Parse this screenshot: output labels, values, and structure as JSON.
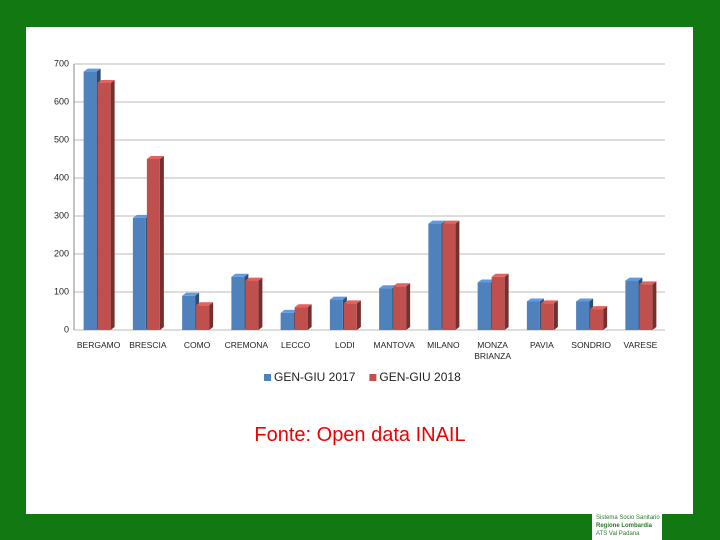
{
  "chart_data": {
    "type": "bar3d",
    "categories": [
      "BERGAMO",
      "BRESCIA",
      "COMO",
      "CREMONA",
      "LECCO",
      "LODI",
      "MANTOVA",
      "MILANO",
      "MONZA BRIANZA",
      "PAVIA",
      "SONDRIO",
      "VARESE"
    ],
    "series": [
      {
        "name": "GEN-GIU 2017",
        "color": "#4f81bd",
        "values": [
          680,
          295,
          90,
          140,
          45,
          80,
          110,
          280,
          125,
          75,
          75,
          130
        ]
      },
      {
        "name": "GEN-GIU 2018",
        "color": "#c0504d",
        "values": [
          650,
          450,
          65,
          130,
          60,
          70,
          115,
          280,
          140,
          70,
          55,
          120
        ]
      }
    ],
    "ylim": [
      0,
      700
    ],
    "yticks": [
      0,
      100,
      200,
      300,
      400,
      500,
      600,
      700
    ],
    "grid": true,
    "legend": "bottom"
  },
  "caption": "Fonte: Open data INAIL",
  "logo": {
    "lines": [
      "Sistema Socio Sanitario",
      "Regione Lombardia",
      "ATS Val Padana"
    ]
  }
}
